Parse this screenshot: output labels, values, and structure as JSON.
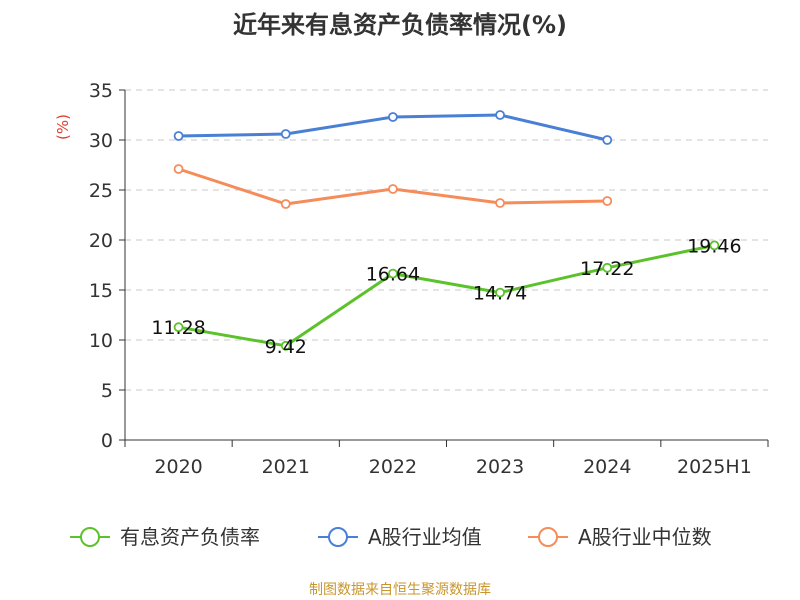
{
  "chart_data": {
    "type": "line",
    "title": "近年来有息资产负债率情况(%)",
    "ylabel": "(%)",
    "xlabel": "",
    "categories": [
      "2020",
      "2021",
      "2022",
      "2023",
      "2024",
      "2025H1"
    ],
    "ylim": [
      0,
      35
    ],
    "yticks": [
      0,
      5,
      10,
      15,
      20,
      25,
      30,
      35
    ],
    "ytick_labels": [
      "0",
      "5",
      "10",
      "15",
      "20",
      "25",
      "30",
      "35"
    ],
    "grid": true,
    "legend_position": "bottom",
    "series": [
      {
        "name": "有息资产负债率",
        "color": "#5cc22c",
        "values": [
          11.28,
          9.42,
          16.64,
          14.74,
          17.22,
          19.46
        ],
        "labels": [
          "11.28",
          "9.42",
          "16.64",
          "14.74",
          "17.22",
          "19.46"
        ],
        "show_labels": true
      },
      {
        "name": "A股行业均值",
        "color": "#4a7fd6",
        "values": [
          30.4,
          30.6,
          32.3,
          32.5,
          30.0,
          null
        ],
        "show_labels": false
      },
      {
        "name": "A股行业中位数",
        "color": "#f58c5a",
        "values": [
          27.1,
          23.6,
          25.1,
          23.7,
          23.9,
          null
        ],
        "show_labels": false
      }
    ],
    "source": "制图数据来自恒生聚源数据库",
    "source_color": "#c8962e",
    "ylabel_color": "#e03c31"
  }
}
